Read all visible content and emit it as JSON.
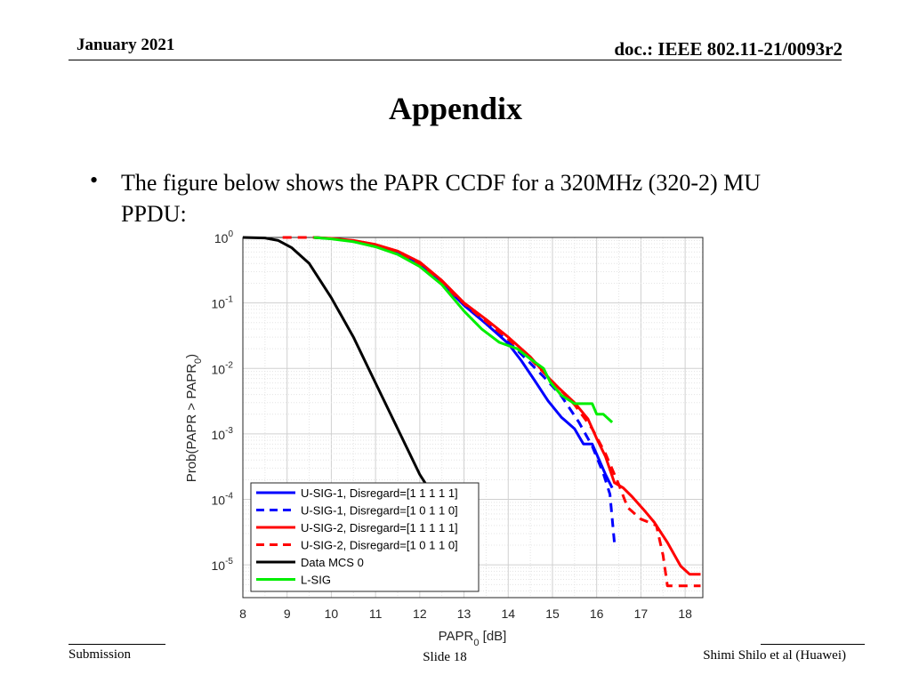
{
  "header": {
    "date": "January 2021",
    "doc": "doc.: IEEE 802.11-21/0093r2"
  },
  "title": "Appendix",
  "bullet": {
    "marker": "•",
    "text": "The figure below shows the PAPR CCDF for a 320MHz (320-2) MU PPDU:"
  },
  "footer": {
    "left": "Submission",
    "center": "Slide 18",
    "right": "Shimi Shilo et al (Huawei)"
  },
  "chart_data": {
    "type": "line",
    "xlabel_main": "PAPR",
    "xlabel_sub": "0",
    "xlabel_unit": " [dB]",
    "ylabel_main": "Prob(PAPR > PAPR",
    "ylabel_sub": "0",
    "ylabel_end": ")",
    "xlim": [
      8,
      18.4
    ],
    "ylim_log10": [
      -5.5,
      0
    ],
    "xticks": [
      "8",
      "9",
      "10",
      "11",
      "12",
      "13",
      "14",
      "15",
      "16",
      "17",
      "18"
    ],
    "yticks": [
      {
        "base": "10",
        "exp": "0"
      },
      {
        "base": "10",
        "exp": "-1"
      },
      {
        "base": "10",
        "exp": "-2"
      },
      {
        "base": "10",
        "exp": "-3"
      },
      {
        "base": "10",
        "exp": "-4"
      },
      {
        "base": "10",
        "exp": "-5"
      }
    ],
    "yscale": "log",
    "grid": true,
    "legend_position": "bottom-left",
    "series": [
      {
        "name": "U-SIG-1, Disregard=[1 1 1 1 1]",
        "color": "#0000ff",
        "dash": false,
        "x": [
          9.6,
          10.0,
          10.5,
          11.0,
          11.5,
          12.0,
          12.5,
          13.0,
          13.5,
          14.0,
          14.3,
          14.6,
          14.9,
          15.2,
          15.5,
          15.7,
          15.9,
          16.2,
          16.35
        ],
        "y": [
          1.0,
          0.96,
          0.88,
          0.75,
          0.58,
          0.38,
          0.2,
          0.092,
          0.048,
          0.024,
          0.013,
          0.0065,
          0.0032,
          0.0018,
          0.0012,
          0.0007,
          0.0007,
          0.00024,
          0.00015
        ]
      },
      {
        "name": "U-SIG-1, Disregard=[1 0 1 1 0]",
        "color": "#0000ff",
        "dash": true,
        "x": [
          9.6,
          10.0,
          10.5,
          11.0,
          11.5,
          12.0,
          12.5,
          13.0,
          13.5,
          14.0,
          14.4,
          14.8,
          15.2,
          15.6,
          15.9,
          16.15,
          16.3,
          16.4
        ],
        "y": [
          1.0,
          0.96,
          0.88,
          0.75,
          0.58,
          0.38,
          0.2,
          0.095,
          0.05,
          0.026,
          0.014,
          0.0075,
          0.0038,
          0.0015,
          0.00065,
          0.00025,
          0.00012,
          2.2e-05
        ]
      },
      {
        "name": "U-SIG-2, Disregard=[1 1 1 1 1]",
        "color": "#ff0000",
        "dash": false,
        "x": [
          9.6,
          10.0,
          10.5,
          11.0,
          11.5,
          12.0,
          12.5,
          13.0,
          13.5,
          14.0,
          14.5,
          15.0,
          15.5,
          15.8,
          16.0,
          16.2,
          16.4,
          16.6,
          16.8,
          17.1,
          17.3,
          17.6,
          17.9,
          18.1,
          18.35
        ],
        "y": [
          1.0,
          0.97,
          0.9,
          0.78,
          0.62,
          0.42,
          0.22,
          0.1,
          0.056,
          0.03,
          0.015,
          0.0062,
          0.003,
          0.0017,
          0.00085,
          0.00045,
          0.00018,
          0.00015,
          0.00011,
          6.5e-05,
          4.5e-05,
          2.2e-05,
          9.6e-06,
          7.2e-06,
          7.2e-06
        ]
      },
      {
        "name": "U-SIG-2, Disregard=[1 0 1 1 0]",
        "color": "#ff0000",
        "dash": true,
        "x": [
          8.9,
          9.6,
          10.0,
          10.5,
          11.0,
          11.5,
          12.0,
          12.5,
          13.0,
          13.5,
          14.0,
          14.5,
          15.0,
          15.5,
          15.9,
          16.2,
          16.5,
          16.7,
          17.0,
          17.35,
          17.5,
          17.6,
          17.8,
          18.35
        ],
        "y": [
          1.0,
          1.0,
          0.96,
          0.89,
          0.76,
          0.6,
          0.4,
          0.2,
          0.098,
          0.052,
          0.028,
          0.014,
          0.0063,
          0.0028,
          0.0012,
          0.0005,
          0.00017,
          7.5e-05,
          5e-05,
          4e-05,
          1.4e-05,
          4.8e-06,
          4.8e-06,
          4.8e-06
        ]
      },
      {
        "name": "Data MCS 0",
        "color": "#000000",
        "dash": false,
        "x": [
          8.0,
          8.5,
          8.8,
          9.1,
          9.5,
          10.0,
          10.5,
          11.0,
          11.5,
          12.0,
          12.25,
          12.45
        ],
        "y": [
          1.0,
          0.98,
          0.9,
          0.7,
          0.4,
          0.12,
          0.03,
          0.006,
          0.0012,
          0.00024,
          0.00013,
          9e-05
        ]
      },
      {
        "name": "L-SIG",
        "color": "#00ee00",
        "dash": false,
        "x": [
          9.6,
          10.0,
          10.5,
          11.0,
          11.5,
          12.0,
          12.5,
          13.0,
          13.4,
          13.8,
          14.2,
          14.5,
          14.8,
          14.95,
          15.2,
          15.5,
          15.9,
          16.0,
          16.15,
          16.35
        ],
        "y": [
          1.0,
          0.95,
          0.86,
          0.72,
          0.55,
          0.36,
          0.19,
          0.075,
          0.04,
          0.025,
          0.02,
          0.014,
          0.01,
          0.0062,
          0.0039,
          0.0029,
          0.0029,
          0.002,
          0.002,
          0.0015
        ]
      }
    ]
  }
}
